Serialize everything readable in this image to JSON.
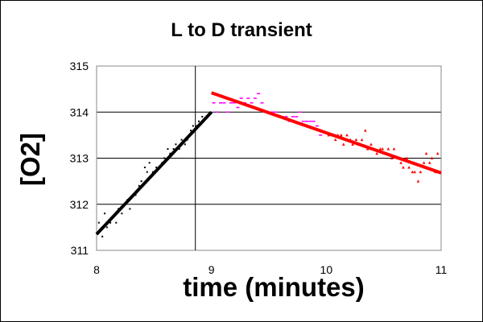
{
  "chart_data": {
    "type": "scatter",
    "title": "L to D transient",
    "xlabel": "time (minutes)",
    "ylabel": "[O2]",
    "xlim": [
      8,
      11
    ],
    "ylim": [
      311,
      315
    ],
    "x_ticks": [
      8,
      9,
      10,
      11
    ],
    "y_ticks": [
      311,
      312,
      313,
      314,
      315
    ],
    "grid": "horizontal",
    "reference_line_x": 8.86,
    "series": [
      {
        "color": "#000000",
        "marker": "dot",
        "points": [
          [
            8.02,
            311.6
          ],
          [
            8.05,
            311.3
          ],
          [
            8.07,
            311.8
          ],
          [
            8.09,
            311.5
          ],
          [
            8.12,
            311.6
          ],
          [
            8.14,
            311.7
          ],
          [
            8.17,
            311.6
          ],
          [
            8.19,
            311.9
          ],
          [
            8.22,
            311.8
          ],
          [
            8.24,
            312.0
          ],
          [
            8.27,
            312.1
          ],
          [
            8.29,
            311.9
          ],
          [
            8.32,
            312.2
          ],
          [
            8.34,
            312.2
          ],
          [
            8.37,
            312.4
          ],
          [
            8.39,
            312.5
          ],
          [
            8.42,
            312.8
          ],
          [
            8.44,
            312.7
          ],
          [
            8.46,
            312.9
          ],
          [
            8.49,
            312.7
          ],
          [
            8.52,
            312.8
          ],
          [
            8.54,
            312.8
          ],
          [
            8.57,
            312.9
          ],
          [
            8.59,
            313.0
          ],
          [
            8.62,
            313.2
          ],
          [
            8.64,
            313.1
          ],
          [
            8.67,
            313.2
          ],
          [
            8.69,
            313.3
          ],
          [
            8.72,
            313.2
          ],
          [
            8.74,
            313.4
          ],
          [
            8.77,
            313.3
          ],
          [
            8.79,
            313.4
          ],
          [
            8.82,
            313.6
          ],
          [
            8.84,
            313.7
          ],
          [
            8.87,
            313.7
          ],
          [
            8.89,
            313.8
          ],
          [
            8.92,
            313.9
          ]
        ]
      },
      {
        "color": "#ff00ff",
        "marker": "dash",
        "points": [
          [
            9.02,
            314.2
          ],
          [
            9.05,
            314.0
          ],
          [
            9.08,
            314.2
          ],
          [
            9.11,
            314.2
          ],
          [
            9.14,
            314.0
          ],
          [
            9.17,
            314.2
          ],
          [
            9.2,
            314.2
          ],
          [
            9.23,
            314.1
          ],
          [
            9.26,
            314.3
          ],
          [
            9.29,
            314.2
          ],
          [
            9.32,
            314.3
          ],
          [
            9.35,
            314.2
          ],
          [
            9.38,
            314.3
          ],
          [
            9.41,
            314.4
          ],
          [
            9.44,
            314.2
          ],
          [
            9.47,
            314.0
          ],
          [
            9.5,
            314.0
          ],
          [
            9.53,
            314.0
          ],
          [
            9.56,
            314.0
          ],
          [
            9.59,
            313.9
          ],
          [
            9.62,
            313.9
          ],
          [
            9.65,
            313.9
          ],
          [
            9.68,
            313.8
          ],
          [
            9.71,
            313.9
          ],
          [
            9.74,
            313.9
          ],
          [
            9.77,
            314.0
          ],
          [
            9.8,
            313.8
          ],
          [
            9.83,
            313.8
          ],
          [
            9.86,
            313.8
          ],
          [
            9.89,
            313.8
          ],
          [
            9.92,
            313.7
          ],
          [
            9.95,
            313.5
          ]
        ]
      },
      {
        "color": "#ff0000",
        "marker": "triangle",
        "points": [
          [
            10.02,
            313.5
          ],
          [
            10.05,
            313.5
          ],
          [
            10.08,
            313.4
          ],
          [
            10.1,
            313.5
          ],
          [
            10.13,
            313.5
          ],
          [
            10.15,
            313.3
          ],
          [
            10.18,
            313.5
          ],
          [
            10.21,
            313.4
          ],
          [
            10.23,
            313.3
          ],
          [
            10.26,
            313.4
          ],
          [
            10.28,
            313.3
          ],
          [
            10.31,
            313.4
          ],
          [
            10.34,
            313.6
          ],
          [
            10.36,
            313.2
          ],
          [
            10.39,
            313.3
          ],
          [
            10.41,
            313.2
          ],
          [
            10.44,
            313.1
          ],
          [
            10.47,
            313.2
          ],
          [
            10.49,
            313.2
          ],
          [
            10.52,
            313.1
          ],
          [
            10.54,
            313.2
          ],
          [
            10.57,
            313.0
          ],
          [
            10.59,
            313.2
          ],
          [
            10.62,
            313.0
          ],
          [
            10.65,
            312.9
          ],
          [
            10.67,
            312.8
          ],
          [
            10.7,
            313.0
          ],
          [
            10.72,
            312.8
          ],
          [
            10.75,
            312.7
          ],
          [
            10.77,
            312.7
          ],
          [
            10.8,
            312.5
          ],
          [
            10.82,
            312.7
          ],
          [
            10.85,
            312.9
          ],
          [
            10.87,
            313.1
          ],
          [
            10.9,
            312.9
          ],
          [
            10.92,
            313.0
          ],
          [
            10.95,
            312.7
          ],
          [
            10.97,
            313.1
          ]
        ]
      }
    ],
    "fit_lines": [
      {
        "color": "#000000",
        "x": [
          8.0,
          9.0
        ],
        "y": [
          311.35,
          314.0
        ]
      },
      {
        "color": "#ff0000",
        "x": [
          9.0,
          11.0
        ],
        "y": [
          314.42,
          312.68
        ]
      }
    ]
  }
}
